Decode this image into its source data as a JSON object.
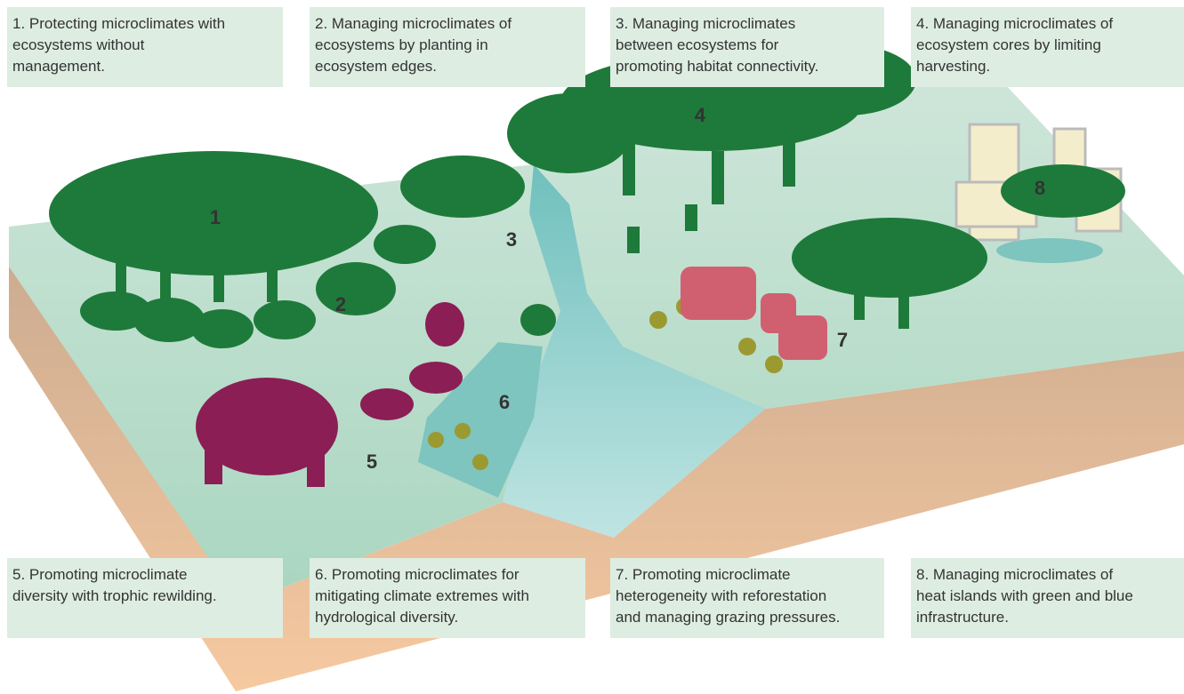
{
  "captions": [
    {
      "lines": [
        "1. Protecting microclimates with",
        "ecosystems without",
        "management."
      ]
    },
    {
      "lines": [
        "2. Managing microclimates of",
        "ecosystems by planting in",
        "ecosystem edges."
      ]
    },
    {
      "lines": [
        "3. Managing microclimates",
        "between ecosystems for",
        "promoting habitat connectivity."
      ]
    },
    {
      "lines": [
        "4. Managing microclimates of",
        "ecosystem cores by limiting",
        "harvesting."
      ]
    },
    {
      "lines": [
        "5. Promoting microclimate",
        "diversity with trophic rewilding."
      ]
    },
    {
      "lines": [
        "6. Promoting microclimates for",
        "mitigating climate extremes with",
        "hydrological diversity."
      ]
    },
    {
      "lines": [
        "7. Promoting microclimate",
        "heterogeneity with reforestation",
        "and managing grazing pressures."
      ]
    },
    {
      "lines": [
        "8. Managing microclimates of",
        "heat islands with green and blue",
        "infrastructure."
      ]
    }
  ],
  "markers": [
    {
      "label": "1"
    },
    {
      "label": "2"
    },
    {
      "label": "3"
    },
    {
      "label": "4"
    },
    {
      "label": "5"
    },
    {
      "label": "6"
    },
    {
      "label": "7"
    },
    {
      "label": "8"
    }
  ]
}
